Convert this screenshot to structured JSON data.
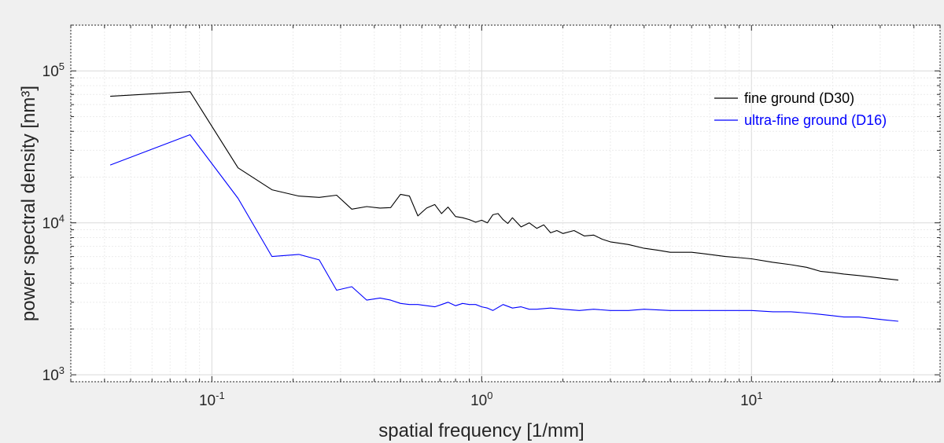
{
  "chart_data": {
    "type": "line",
    "xlabel": "spatial frequency [1/mm]",
    "ylabel": "power spectral density [nm³]",
    "xscale": "log",
    "yscale": "log",
    "xlim": [
      0.03,
      50
    ],
    "ylim": [
      900,
      200000
    ],
    "grid": true,
    "legend_position": "top-right",
    "x_ticks": [
      {
        "value": 0.1,
        "base": "10",
        "exp": "-1"
      },
      {
        "value": 1,
        "base": "10",
        "exp": "0"
      },
      {
        "value": 10,
        "base": "10",
        "exp": "1"
      }
    ],
    "y_ticks": [
      {
        "value": 1000,
        "base": "10",
        "exp": "3"
      },
      {
        "value": 10000,
        "base": "10",
        "exp": "4"
      },
      {
        "value": 100000,
        "base": "10",
        "exp": "5"
      }
    ],
    "series": [
      {
        "name": "fine ground (D30)",
        "color": "#000000",
        "x": [
          0.042,
          0.083,
          0.125,
          0.167,
          0.21,
          0.25,
          0.29,
          0.33,
          0.375,
          0.42,
          0.46,
          0.5,
          0.54,
          0.58,
          0.625,
          0.67,
          0.71,
          0.75,
          0.8,
          0.85,
          0.9,
          0.95,
          1.0,
          1.05,
          1.1,
          1.15,
          1.2,
          1.25,
          1.3,
          1.4,
          1.5,
          1.6,
          1.7,
          1.8,
          1.9,
          2.0,
          2.2,
          2.4,
          2.6,
          2.8,
          3.0,
          3.5,
          4.0,
          4.5,
          5.0,
          6.0,
          7.0,
          8.0,
          9.0,
          10.0,
          12.0,
          14.0,
          16.0,
          18.0,
          20.0,
          22.0,
          25.0,
          28.0,
          31.0,
          35.0
        ],
        "y": [
          68000,
          73000,
          23000,
          16500,
          15000,
          14700,
          15200,
          12300,
          12800,
          12500,
          12600,
          15400,
          15000,
          11100,
          12500,
          13200,
          11500,
          12700,
          11000,
          10800,
          10500,
          10100,
          10400,
          10000,
          11300,
          11500,
          10500,
          9900,
          10800,
          9400,
          10000,
          9200,
          9700,
          8600,
          8900,
          8500,
          8900,
          8200,
          8300,
          7800,
          7500,
          7200,
          6800,
          6600,
          6400,
          6400,
          6200,
          6000,
          5900,
          5800,
          5500,
          5300,
          5100,
          4800,
          4700,
          4600,
          4500,
          4400,
          4300,
          4200
        ]
      },
      {
        "name": "ultra-fine ground (D16)",
        "color": "#0000ff",
        "x": [
          0.042,
          0.083,
          0.125,
          0.167,
          0.21,
          0.25,
          0.29,
          0.33,
          0.375,
          0.42,
          0.46,
          0.5,
          0.54,
          0.58,
          0.625,
          0.67,
          0.71,
          0.75,
          0.8,
          0.85,
          0.9,
          0.95,
          1.0,
          1.05,
          1.1,
          1.2,
          1.3,
          1.4,
          1.5,
          1.6,
          1.8,
          2.0,
          2.3,
          2.6,
          3.0,
          3.5,
          4.0,
          5.0,
          6.0,
          7.0,
          8.0,
          10.0,
          12.0,
          14.0,
          16.0,
          18.0,
          20.0,
          22.0,
          25.0,
          28.0,
          31.0,
          35.0
        ],
        "y": [
          24000,
          38000,
          14500,
          6000,
          6200,
          5700,
          3600,
          3800,
          3100,
          3200,
          3100,
          2950,
          2900,
          2900,
          2850,
          2800,
          2900,
          3000,
          2850,
          2950,
          2900,
          2900,
          2800,
          2750,
          2650,
          2900,
          2750,
          2800,
          2700,
          2700,
          2750,
          2700,
          2650,
          2700,
          2650,
          2650,
          2700,
          2650,
          2650,
          2650,
          2650,
          2650,
          2600,
          2600,
          2550,
          2500,
          2450,
          2400,
          2400,
          2350,
          2300,
          2250
        ]
      }
    ]
  }
}
